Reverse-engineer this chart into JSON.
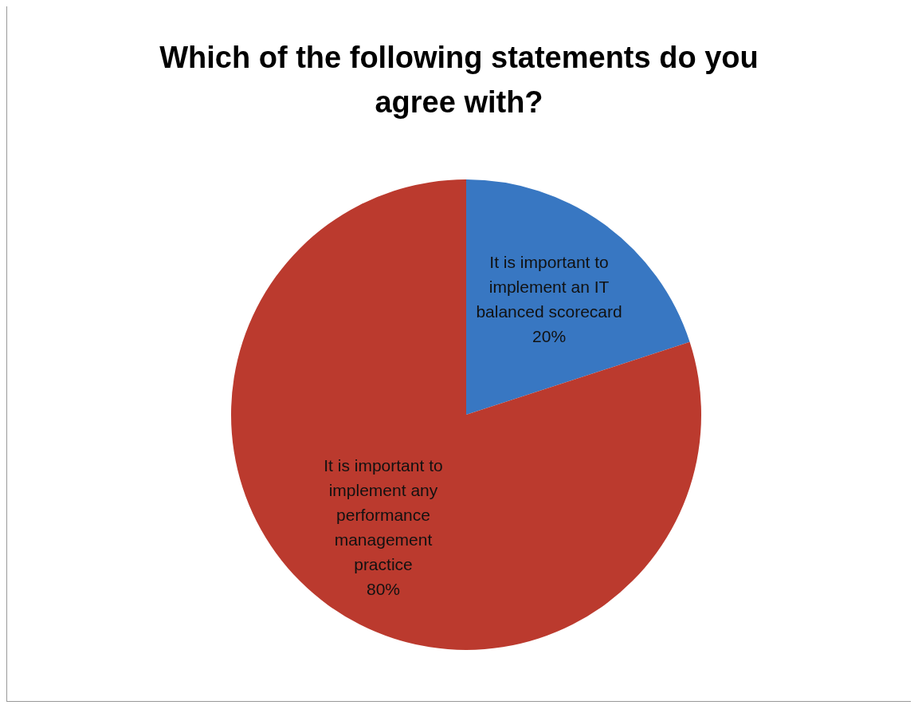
{
  "chart_data": {
    "type": "pie",
    "title": "Which of the following statements do you agree with?",
    "categories": [
      "It is important to implement an IT balanced scorecard",
      "It is important to implement any performance management practice"
    ],
    "values": [
      20,
      80
    ],
    "value_labels": [
      "20%",
      "80%"
    ],
    "colors": [
      "#3877c2",
      "#bb3a2e"
    ],
    "legend": false
  }
}
